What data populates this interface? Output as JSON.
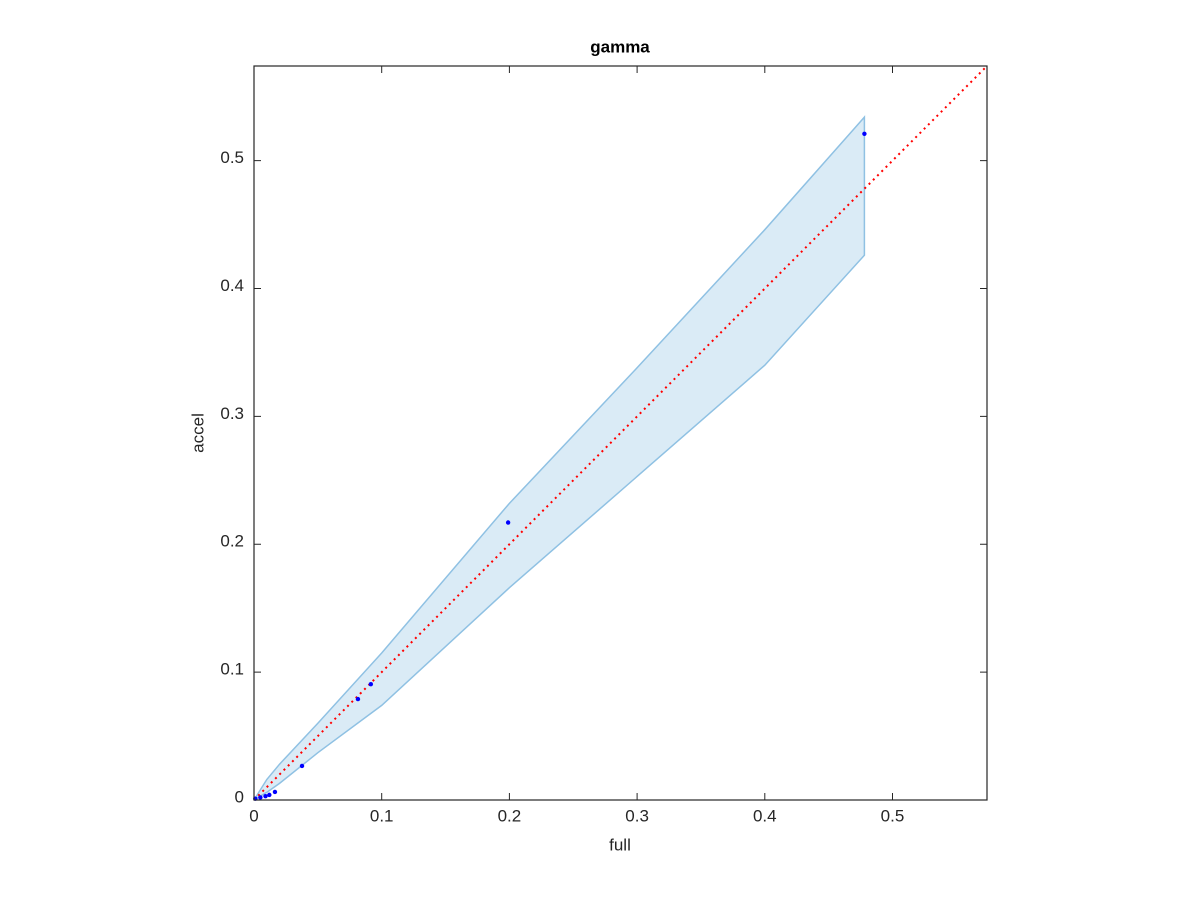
{
  "chart_data": {
    "type": "scatter",
    "title": "gamma",
    "x_label": "full",
    "y_label": "accel",
    "x": [
      0.001,
      0.005,
      0.009,
      0.012,
      0.0164,
      0.0376,
      0.0814,
      0.0915,
      0.199,
      0.478
    ],
    "values": [
      0.001,
      0.002,
      0.003,
      0.004,
      0.0063,
      0.0266,
      0.0789,
      0.0906,
      0.217,
      0.521
    ],
    "color": "#0000ff",
    "band": {
      "x": [
        0,
        0.01,
        0.02,
        0.05,
        0.1,
        0.2,
        0.3,
        0.4,
        0.478
      ],
      "upper": [
        0,
        0.016,
        0.028,
        0.06,
        0.115,
        0.232,
        0.338,
        0.446,
        0.534
      ],
      "lower": [
        0,
        0.006,
        0.013,
        0.037,
        0.074,
        0.166,
        0.253,
        0.34,
        0.426
      ],
      "color": "#8fc1e3"
    },
    "reference_line": {
      "x": [
        0,
        0.574
      ],
      "values": [
        0,
        0.574
      ],
      "color": "#ff0000",
      "style": "dotted"
    },
    "xlim": [
      0,
      0.574
    ],
    "ylim": [
      0,
      0.574
    ],
    "xticks": [
      0,
      0.1,
      0.2,
      0.3,
      0.4,
      0.5
    ],
    "yticks": [
      0,
      0.1,
      0.2,
      0.3,
      0.4,
      0.5
    ]
  }
}
